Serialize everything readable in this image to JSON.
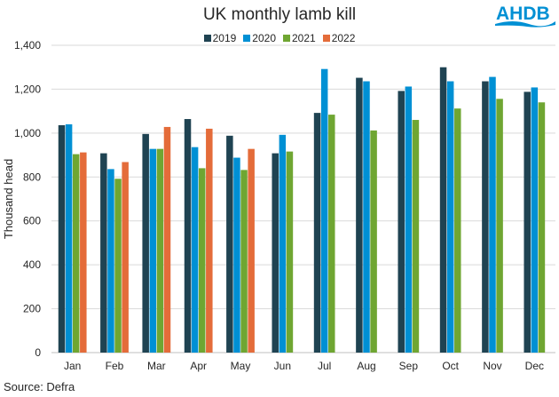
{
  "chart_data": {
    "type": "bar",
    "title": "UK monthly lamb kill",
    "xlabel": "",
    "ylabel": "Thousand head",
    "ylim": [
      0,
      1400
    ],
    "yticks": [
      0,
      200,
      400,
      600,
      800,
      1000,
      1200,
      1400
    ],
    "ytick_labels": [
      "0",
      "200",
      "400",
      "600",
      "800",
      "1,000",
      "1,200",
      "1,400"
    ],
    "grid": true,
    "legend_position": "top",
    "categories": [
      "Jan",
      "Feb",
      "Mar",
      "Apr",
      "May",
      "Jun",
      "Jul",
      "Aug",
      "Sep",
      "Oct",
      "Nov",
      "Dec"
    ],
    "series": [
      {
        "name": "2019",
        "color": "#1f4352",
        "values": [
          1036,
          908,
          996,
          1064,
          988,
          908,
          1092,
          1252,
          1192,
          1300,
          1236,
          1188
        ]
      },
      {
        "name": "2020",
        "color": "#0090d4",
        "values": [
          1040,
          836,
          928,
          936,
          888,
          992,
          1292,
          1236,
          1212,
          1236,
          1256,
          1208
        ]
      },
      {
        "name": "2021",
        "color": "#6fa632",
        "values": [
          904,
          792,
          928,
          840,
          832,
          916,
          1084,
          1012,
          1060,
          1112,
          1156,
          1140
        ]
      },
      {
        "name": "2022",
        "color": "#e46c3a",
        "values": [
          912,
          868,
          1028,
          1020,
          928,
          null,
          null,
          null,
          null,
          null,
          null,
          null
        ]
      }
    ]
  },
  "source": "Source: Defra",
  "logo_text": "AHDB"
}
